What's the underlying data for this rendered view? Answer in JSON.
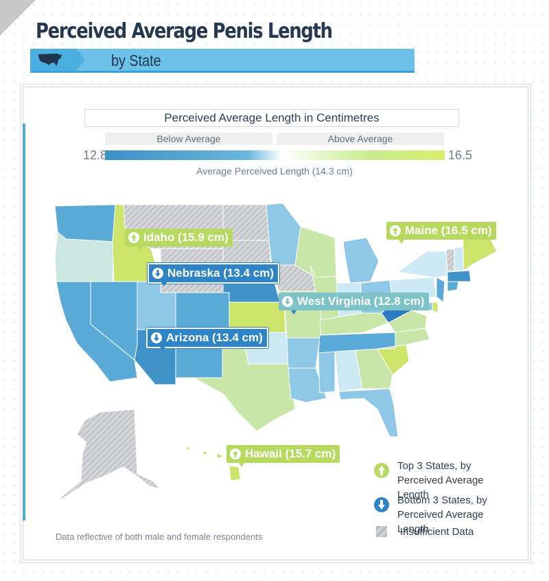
{
  "header": {
    "title": "Perceived Average Penis Length",
    "subtitle": "by State"
  },
  "scale": {
    "title": "Perceived Average Length in Centimetres",
    "below_label": "Below Average",
    "above_label": "Above Average",
    "min": "12.8",
    "max": "16.5",
    "average_label": "Average Perceived Length (14.3 cm)"
  },
  "colors": {
    "low": "#3c90c7",
    "high": "#d9ee6c",
    "no_data": "#cfd1d4",
    "brand": "#4aaede"
  },
  "callouts": {
    "idaho": "Idaho (15.9 cm)",
    "maine": "Maine (16.5 cm)",
    "nebraska": "Nebraska (13.4 cm)",
    "west_virginia": "West Virginia (12.8 cm)",
    "arizona": "Arizona (13.4 cm)",
    "hawaii": "Hawaii (15.7 cm)"
  },
  "legend": {
    "top": "Top 3 States, by Perceived Average Length",
    "bottom": "Bottom 3 States, by Perceived Average Length",
    "insufficient": "Insufficient Data"
  },
  "footnote": "Data reflective of both male and female respondents",
  "states": [
    {
      "name": "Washington",
      "tier": "mid_low"
    },
    {
      "name": "Oregon",
      "tier": "pale_green"
    },
    {
      "name": "California",
      "tier": "mid_low"
    },
    {
      "name": "Nevada",
      "tier": "mid_low"
    },
    {
      "name": "Idaho",
      "tier": "top",
      "value": 15.9
    },
    {
      "name": "Montana",
      "tier": "no_data"
    },
    {
      "name": "Wyoming",
      "tier": "no_data"
    },
    {
      "name": "Utah",
      "tier": "light_blue"
    },
    {
      "name": "Colorado",
      "tier": "mid_low"
    },
    {
      "name": "Arizona",
      "tier": "bottom",
      "value": 13.4
    },
    {
      "name": "New Mexico",
      "tier": "mid_low"
    },
    {
      "name": "North Dakota",
      "tier": "no_data"
    },
    {
      "name": "South Dakota",
      "tier": "no_data"
    },
    {
      "name": "Nebraska",
      "tier": "bottom",
      "value": 13.4
    },
    {
      "name": "Kansas",
      "tier": "green"
    },
    {
      "name": "Oklahoma",
      "tier": "pale_blue"
    },
    {
      "name": "Texas",
      "tier": "pale_green"
    },
    {
      "name": "Minnesota",
      "tier": "light_blue"
    },
    {
      "name": "Iowa",
      "tier": "no_data"
    },
    {
      "name": "Missouri",
      "tier": "pale_green"
    },
    {
      "name": "Arkansas",
      "tier": "light_blue"
    },
    {
      "name": "Louisiana",
      "tier": "light_blue"
    },
    {
      "name": "Wisconsin",
      "tier": "pale_green"
    },
    {
      "name": "Illinois",
      "tier": "pale_green"
    },
    {
      "name": "Michigan",
      "tier": "light_blue"
    },
    {
      "name": "Indiana",
      "tier": "pale_blue"
    },
    {
      "name": "Ohio",
      "tier": "light_blue"
    },
    {
      "name": "Kentucky",
      "tier": "pale_green"
    },
    {
      "name": "Tennessee",
      "tier": "mid_low"
    },
    {
      "name": "Mississippi",
      "tier": "light_blue"
    },
    {
      "name": "Alabama",
      "tier": "pale_blue"
    },
    {
      "name": "Georgia",
      "tier": "pale_green"
    },
    {
      "name": "Florida",
      "tier": "light_blue"
    },
    {
      "name": "South Carolina",
      "tier": "green"
    },
    {
      "name": "North Carolina",
      "tier": "pale_green"
    },
    {
      "name": "Virginia",
      "tier": "pale_green"
    },
    {
      "name": "West Virginia",
      "tier": "bottom",
      "value": 12.8
    },
    {
      "name": "Pennsylvania",
      "tier": "pale_blue"
    },
    {
      "name": "New York",
      "tier": "pale_blue"
    },
    {
      "name": "Vermont",
      "tier": "no_data"
    },
    {
      "name": "New Hampshire",
      "tier": "pale_blue"
    },
    {
      "name": "Maine",
      "tier": "top",
      "value": 16.5
    },
    {
      "name": "Massachusetts",
      "tier": "mid_low"
    },
    {
      "name": "Connecticut",
      "tier": "mid_low"
    },
    {
      "name": "New Jersey",
      "tier": "mid_low"
    },
    {
      "name": "Delaware",
      "tier": "green"
    },
    {
      "name": "Maryland",
      "tier": "light_blue"
    },
    {
      "name": "Alaska",
      "tier": "no_data"
    },
    {
      "name": "Hawaii",
      "tier": "top",
      "value": 15.7
    }
  ]
}
